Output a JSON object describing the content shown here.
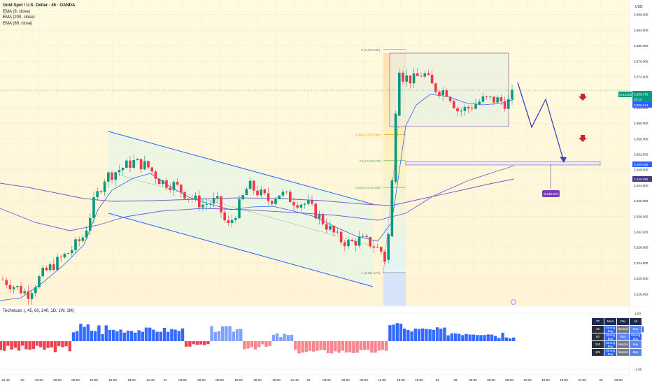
{
  "header": {
    "usd_button": "USD"
  },
  "legend": {
    "title": "Gold Spot / U.S. Dollar · 45 · OANDA",
    "ema1": "EMA (9, close)",
    "ema2": "EMA (200, close)",
    "ema3": "EMA (89, close)"
  },
  "price_axis": {
    "ticks": [
      "3,388.000",
      "3,384.000",
      "3,380.000",
      "3,376.000",
      "3,372.000",
      "3,364.000",
      "3,360.000",
      "3,356.000",
      "3,352.000",
      "3,348.000",
      "3,344.000",
      "3,340.000",
      "3,336.000",
      "3,332.000",
      "3,328.000",
      "3,324.000",
      "3,320.000",
      "3,316.000"
    ],
    "symbol_tag": "XAUUSD",
    "last_price": "3,368.475",
    "countdown": "18:12",
    "ema_tag": "3,366.514",
    "level_tag1": "3,350.028",
    "level_tag2": "3,346.086"
  },
  "fib": {
    "l0": "0 (3,378.965)",
    "l0382": "0.382 (3,357.084)",
    "l05": "0.5 (3,350.320)",
    "l0618": "0.618 (3,343.426)",
    "l1": "1 (3,321.474)"
  },
  "callout": "3,349.879",
  "time_axis": {
    "ticks": [
      "21:45",
      "20",
      "03:00",
      "06:00",
      "09:00",
      "12:00",
      "15:00",
      "18:00",
      "21:45",
      "21",
      "03:00",
      "06:00",
      "09:00",
      "12:00",
      "15:00",
      "18:00",
      "21:45",
      "22",
      "03:00",
      "06:00",
      "09:00",
      "12:00",
      "15:00",
      "18:00",
      "24",
      "25",
      "03:00",
      "06:00",
      "09:00",
      "12:00",
      "15:00",
      "18:00",
      "21:00",
      "26",
      "03:00"
    ]
  },
  "indicator": {
    "title": "Technicals (, 45, 60, 240, 1D, 1W, 1M)",
    "ticks": [
      "1.00",
      "0.42",
      "-0.50",
      "-1.00"
    ],
    "value_tag": "0.42"
  },
  "tech_table": {
    "header": [
      "TF",
      "MAs",
      "Osc",
      "All"
    ],
    "rows": [
      [
        "45",
        "Strong Buy",
        "Neutral",
        "Buy"
      ],
      [
        "60",
        "Strong Buy",
        "Buy",
        "Strong Buy"
      ],
      [
        "240",
        "Strong Buy",
        "Neutral",
        "Buy"
      ],
      [
        "1W",
        "Strong Buy",
        "Neutral",
        "Buy"
      ]
    ]
  },
  "colors": {
    "bull": "#089981",
    "bear": "#f23645",
    "channel": "#2962ff",
    "projection": "#3f3fc8",
    "ema_fast": "#2962ff",
    "ema_mid": "#7e57c2",
    "indicator_pos": "#2962ff",
    "indicator_neg": "#f23645"
  },
  "chart_data": {
    "type": "candlestick",
    "symbol": "Gold Spot / U.S. Dollar",
    "timeframe": "45",
    "ylim": [
      3313,
      3391
    ],
    "last_price": 3368.475,
    "price_levels": {
      "fib_0": 3378.965,
      "fib_0382": 3357.084,
      "fib_05": 3350.32,
      "fib_0618": 3343.426,
      "fib_1": 3321.474
    },
    "callout_value": 3349.879,
    "indicator_value": 0.42
  }
}
